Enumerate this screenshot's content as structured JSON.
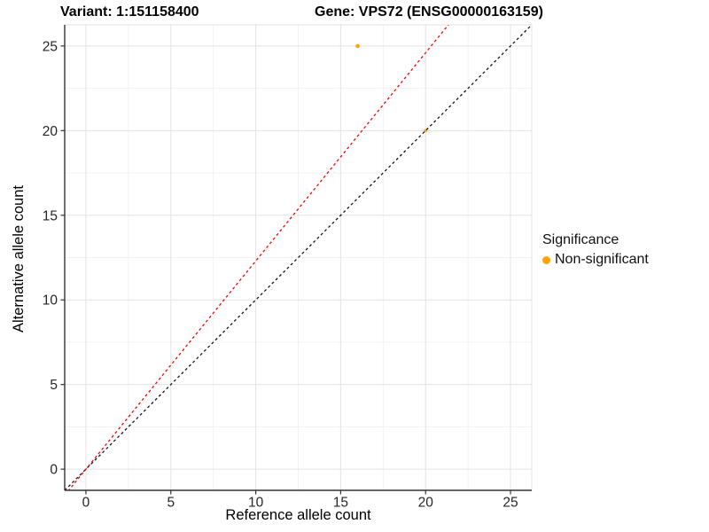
{
  "titles": {
    "variant": "Variant: 1:151158400",
    "gene": "Gene: VPS72 (ENSG00000163159)"
  },
  "chart_data": {
    "type": "scatter",
    "xlabel": "Reference allele count",
    "ylabel": "Alternative allele count",
    "xlim": [
      -1.25,
      26.25
    ],
    "ylim": [
      -1.25,
      26.25
    ],
    "x_ticks": [
      0,
      5,
      10,
      15,
      20,
      25
    ],
    "y_ticks": [
      0,
      5,
      10,
      15,
      20,
      25
    ],
    "x_minor_ticks": [
      2.5,
      7.5,
      12.5,
      17.5,
      22.5
    ],
    "y_minor_ticks": [
      2.5,
      7.5,
      12.5,
      17.5,
      22.5
    ],
    "grid": true,
    "points": [
      {
        "x": 16,
        "y": 25,
        "significance": "Non-significant",
        "color": "#FFA500",
        "radius": 2.3
      },
      {
        "x": 20,
        "y": 20,
        "significance": "Non-significant",
        "color": "#FFA500",
        "radius": 1.8
      }
    ],
    "lines": [
      {
        "name": "identity-line",
        "slope": 1.0,
        "intercept": 0,
        "color": "#141414",
        "dash": "3,3"
      },
      {
        "name": "allelic-ratio-line",
        "slope": 1.23,
        "intercept": 0,
        "color": "#FF0000",
        "dash": "3,3"
      }
    ],
    "legend": {
      "title": "Significance",
      "position": "right",
      "items": [
        {
          "label": "Non-significant",
          "color": "#FFA500"
        }
      ]
    }
  },
  "colors": {
    "background": "#FFFFFF",
    "grid_major": "#E3E3E3",
    "grid_minor": "#F1F1F1",
    "axis_line": "#333333",
    "tick_label": "#262626",
    "nonsignificant_point": "#FFA500",
    "ratio_line": "#FF0000",
    "identity_line": "#141414"
  }
}
